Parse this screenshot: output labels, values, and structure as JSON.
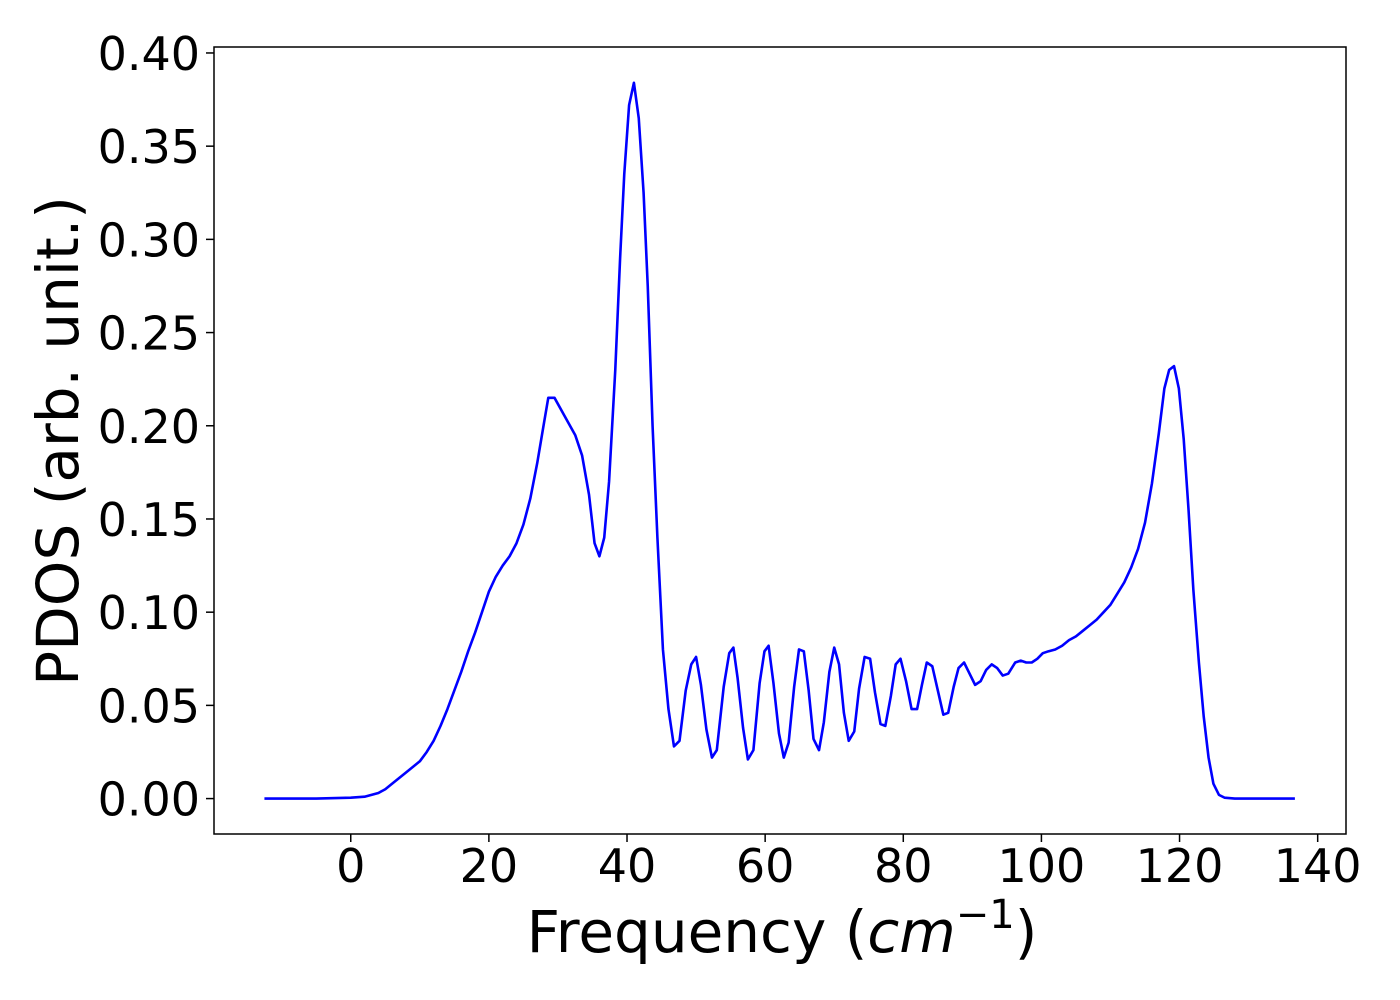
{
  "chart_data": {
    "type": "line",
    "x_label": [
      "Frequency (",
      "cm",
      "−1",
      ")"
    ],
    "y_label": "PDOS (arb. unit.)",
    "xlim": [
      -19.8,
      144.1
    ],
    "ylim": [
      -0.019,
      0.4032
    ],
    "xticks": [
      0,
      20,
      40,
      60,
      80,
      100,
      120,
      140
    ],
    "yticks": [
      {
        "value": 0,
        "label": "0.00"
      },
      {
        "value": 0.05,
        "label": "0.05"
      },
      {
        "value": 0.1,
        "label": "0.10"
      },
      {
        "value": 0.15,
        "label": "0.15"
      },
      {
        "value": 0.2,
        "label": "0.20"
      },
      {
        "value": 0.25,
        "label": "0.25"
      },
      {
        "value": 0.3,
        "label": "0.30"
      },
      {
        "value": 0.35,
        "label": "0.35"
      },
      {
        "value": 0.4,
        "label": "0.40"
      }
    ],
    "grid": false,
    "series": [
      {
        "color": "#0000ff",
        "x": [
          -12.5,
          -5,
          0,
          2,
          4,
          5,
          6,
          8,
          10,
          11,
          12,
          13,
          14,
          15,
          16,
          17,
          18,
          19,
          20,
          21,
          22,
          23,
          24,
          25,
          26,
          27,
          28,
          28.6,
          29.5,
          31,
          32.5,
          33.5,
          34.5,
          35.3,
          36,
          36.7,
          37.4,
          38.3,
          39,
          39.6,
          40.3,
          41,
          41.7,
          42.4,
          43,
          43.7,
          44.4,
          45.2,
          46,
          46.8,
          47.6,
          48.5,
          49.3,
          50,
          50.7,
          51.5,
          52.3,
          53,
          54,
          54.8,
          55.4,
          56,
          56.8,
          57.5,
          58.3,
          59.2,
          59.9,
          60.5,
          61.2,
          62,
          62.7,
          63.4,
          64.2,
          64.9,
          65.6,
          66.3,
          67,
          67.8,
          68.5,
          69.3,
          70,
          70.7,
          71.4,
          72.1,
          72.9,
          73.6,
          74.4,
          75.2,
          75.9,
          76.7,
          77.4,
          78.2,
          78.9,
          79.6,
          80.4,
          81.2,
          82,
          82.7,
          83.4,
          84.2,
          85,
          85.8,
          86.5,
          87.3,
          88,
          88.8,
          89.6,
          90.4,
          91.2,
          92,
          92.8,
          93.6,
          94.4,
          95.2,
          96.2,
          97,
          97.8,
          98.6,
          99.4,
          100.2,
          101,
          102,
          103,
          104,
          105,
          106,
          107,
          108,
          109,
          110,
          111,
          112,
          113,
          114,
          115,
          116,
          117,
          117.8,
          118.5,
          119.2,
          119.9,
          120.6,
          121.3,
          122,
          122.8,
          123.5,
          124.2,
          124.9,
          125.7,
          126.5,
          128,
          136.7
        ],
        "values": [
          0,
          0,
          0.0005,
          0.001,
          0.003,
          0.005,
          0.008,
          0.014,
          0.02,
          0.025,
          0.031,
          0.039,
          0.048,
          0.058,
          0.068,
          0.079,
          0.089,
          0.1,
          0.111,
          0.119,
          0.125,
          0.13,
          0.137,
          0.147,
          0.161,
          0.18,
          0.202,
          0.215,
          0.215,
          0.205,
          0.195,
          0.184,
          0.163,
          0.137,
          0.13,
          0.14,
          0.17,
          0.23,
          0.29,
          0.335,
          0.372,
          0.384,
          0.365,
          0.325,
          0.275,
          0.2,
          0.14,
          0.08,
          0.048,
          0.028,
          0.031,
          0.058,
          0.072,
          0.076,
          0.061,
          0.037,
          0.022,
          0.026,
          0.06,
          0.078,
          0.081,
          0.065,
          0.038,
          0.021,
          0.026,
          0.062,
          0.079,
          0.082,
          0.062,
          0.035,
          0.022,
          0.03,
          0.06,
          0.08,
          0.079,
          0.058,
          0.032,
          0.026,
          0.041,
          0.068,
          0.081,
          0.072,
          0.046,
          0.031,
          0.036,
          0.059,
          0.076,
          0.075,
          0.057,
          0.04,
          0.039,
          0.055,
          0.072,
          0.075,
          0.063,
          0.048,
          0.048,
          0.061,
          0.073,
          0.071,
          0.058,
          0.045,
          0.046,
          0.06,
          0.07,
          0.073,
          0.067,
          0.061,
          0.063,
          0.069,
          0.072,
          0.07,
          0.066,
          0.067,
          0.073,
          0.074,
          0.073,
          0.073,
          0.075,
          0.078,
          0.079,
          0.08,
          0.082,
          0.085,
          0.087,
          0.09,
          0.093,
          0.096,
          0.1,
          0.104,
          0.11,
          0.116,
          0.124,
          0.134,
          0.148,
          0.169,
          0.196,
          0.22,
          0.23,
          0.232,
          0.22,
          0.193,
          0.155,
          0.112,
          0.073,
          0.044,
          0.022,
          0.008,
          0.002,
          0.0005,
          0,
          0
        ]
      }
    ]
  }
}
